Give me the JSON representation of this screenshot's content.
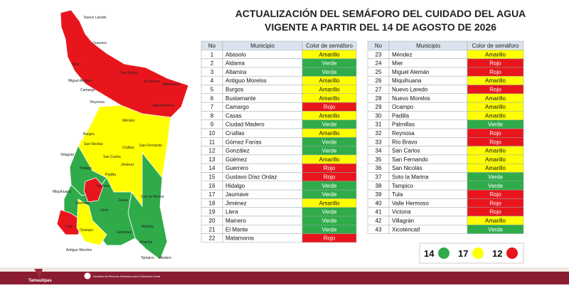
{
  "title": [
    "ACTUALIZACIÓN DEL SEMÁFORO DEL CUIDADO DEL AGUA",
    "VIGENTE A PARTIR DEL 14 DE AGOSTO DE 2026"
  ],
  "status_colors": {
    "Amarillo": "#ffff00",
    "Verde": "#2fab4a",
    "Rojo": "#e8161c"
  },
  "tables": [
    {
      "header": [
        "No",
        "Municipio",
        "Color de semáforo"
      ],
      "rows": [
        [
          "1",
          "Abasolo",
          "Amarillo"
        ],
        [
          "2",
          "Aldama",
          "Verde"
        ],
        [
          "3",
          "Altamira",
          "Verde"
        ],
        [
          "4",
          "Antiguo Morelos",
          "Amarillo"
        ],
        [
          "5",
          "Burgos",
          "Amarillo"
        ],
        [
          "6",
          "Bustamante",
          "Amarillo"
        ],
        [
          "7",
          "Camargo",
          "Rojo"
        ],
        [
          "8",
          "Casas",
          "Amarillo"
        ],
        [
          "9",
          "Ciudad Madero",
          "Verde"
        ],
        [
          "10",
          "Cruillas",
          "Amarillo"
        ],
        [
          "11",
          "Gómez Farías",
          "Verde"
        ],
        [
          "12",
          "González",
          "Verde"
        ],
        [
          "13",
          "Güémez",
          "Amarillo"
        ],
        [
          "14",
          "Guerrero",
          "Rojo"
        ],
        [
          "15",
          "Gustavo Díaz Ordaz",
          "Rojo"
        ],
        [
          "16",
          "Hidalgo",
          "Verde"
        ],
        [
          "17",
          "Jaumave",
          "Verde"
        ],
        [
          "18",
          "Jiménez",
          "Amarillo"
        ],
        [
          "19",
          "Llera",
          "Verde"
        ],
        [
          "20",
          "Mainero",
          "Verde"
        ],
        [
          "21",
          "El Mante",
          "Verde"
        ],
        [
          "22",
          "Matamoros",
          "Rojo"
        ]
      ]
    },
    {
      "header": [
        "No",
        "Municipio",
        "Color de semáforo"
      ],
      "rows": [
        [
          "23",
          "Méndez",
          "Amarillo"
        ],
        [
          "24",
          "Mier",
          "Rojo"
        ],
        [
          "25",
          "Miguel Alemán",
          "Rojo"
        ],
        [
          "26",
          "Miquihuana",
          "Amarillo"
        ],
        [
          "27",
          "Nuevo Laredo",
          "Rojo"
        ],
        [
          "28",
          "Nuevo Morelos",
          "Amarillo"
        ],
        [
          "29",
          "Ocampo",
          "Amarillo"
        ],
        [
          "30",
          "Padilla",
          "Amarillo"
        ],
        [
          "31",
          "Palmillas",
          "Verde"
        ],
        [
          "32",
          "Reynosa",
          "Rojo"
        ],
        [
          "33",
          "Río Bravo",
          "Rojo"
        ],
        [
          "34",
          "San Carlos",
          "Amarillo"
        ],
        [
          "35",
          "San Fernando",
          "Amarillo"
        ],
        [
          "36",
          "San Nicolás",
          "Amarillo"
        ],
        [
          "37",
          "Soto la Marina",
          "Verde"
        ],
        [
          "38",
          "Tampico",
          "Verde"
        ],
        [
          "39",
          "Tula",
          "Rojo"
        ],
        [
          "40",
          "Valle Hermoso",
          "Rojo"
        ],
        [
          "41",
          "Victoria",
          "Rojo"
        ],
        [
          "42",
          "Villagrán",
          "Amarillo"
        ],
        [
          "43",
          "Xicoténcatl",
          "Verde"
        ]
      ]
    }
  ],
  "legend": [
    {
      "count": "14",
      "status": "Verde"
    },
    {
      "count": "17",
      "status": "Amarillo"
    },
    {
      "count": "12",
      "status": "Rojo"
    }
  ],
  "map": {
    "labels": [
      "Nuevo Laredo",
      "Guerrero",
      "Mier",
      "Miguel Alemán",
      "Camargo",
      "Díaz Ordaz",
      "Río Bravo",
      "Matamoros",
      "Reynosa",
      "Valle Hermoso",
      "Méndez",
      "Burgos",
      "San Nicolás",
      "Cruillas",
      "San Fernando",
      "Villagrán",
      "San Carlos",
      "Hidalgo",
      "Padilla",
      "Jiménez",
      "Güémez",
      "Soto la Marina",
      "Miquihuana",
      "Jaumave",
      "Casas",
      "Llera",
      "Tula",
      "Ocampo",
      "Antiguo Morelos",
      "González",
      "Aldama",
      "Altamira",
      "Tampico",
      "Madero"
    ]
  },
  "footer": {
    "brand": "Tamaulipas",
    "secretaria": "Secretaría de Recursos Hidráulicos para el Desarrollo Social"
  }
}
